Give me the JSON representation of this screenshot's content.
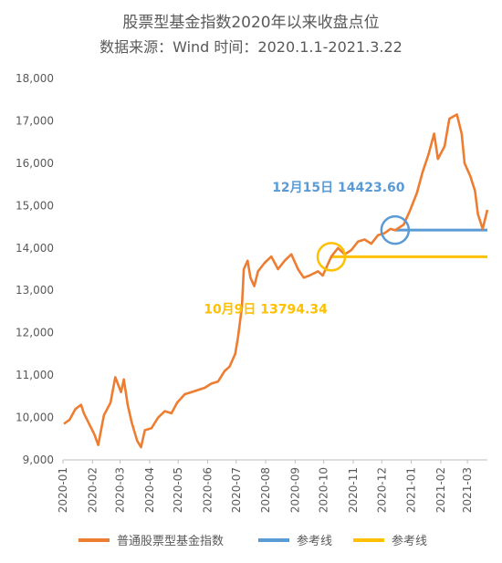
{
  "chart_data": {
    "type": "line",
    "title": "股票型基金指数2020年以来收盘点位",
    "subtitle": "数据来源：Wind 时间：2020.1.1-2021.3.22",
    "ylim": [
      9000,
      18000
    ],
    "yticks": [
      9000,
      10000,
      11000,
      12000,
      13000,
      14000,
      15000,
      16000,
      17000,
      18000
    ],
    "ytick_labels": [
      "9,000",
      "10,000",
      "11,000",
      "12,000",
      "13,000",
      "14,000",
      "15,000",
      "16,000",
      "17,000",
      "18,000"
    ],
    "x_categories": [
      "2020-01",
      "2020-02",
      "2020-03",
      "2020-04",
      "2020-05",
      "2020-06",
      "2020-07",
      "2020-08",
      "2020-09",
      "2020-10",
      "2020-11",
      "2020-12",
      "2021-01",
      "2021-02",
      "2021-03"
    ],
    "series": [
      {
        "name": "普通股票型基金指数",
        "color": "#ED7D31",
        "x": [
          "2020-01-02",
          "2020-01-08",
          "2020-01-14",
          "2020-01-20",
          "2020-01-23",
          "2020-02-03",
          "2020-02-07",
          "2020-02-13",
          "2020-02-20",
          "2020-02-25",
          "2020-03-02",
          "2020-03-05",
          "2020-03-09",
          "2020-03-13",
          "2020-03-19",
          "2020-03-23",
          "2020-03-27",
          "2020-04-03",
          "2020-04-10",
          "2020-04-17",
          "2020-04-24",
          "2020-04-30",
          "2020-05-08",
          "2020-05-15",
          "2020-05-22",
          "2020-05-29",
          "2020-06-05",
          "2020-06-12",
          "2020-06-19",
          "2020-06-24",
          "2020-06-30",
          "2020-07-03",
          "2020-07-07",
          "2020-07-09",
          "2020-07-13",
          "2020-07-16",
          "2020-07-20",
          "2020-07-24",
          "2020-07-31",
          "2020-08-07",
          "2020-08-14",
          "2020-08-21",
          "2020-08-28",
          "2020-09-04",
          "2020-09-10",
          "2020-09-16",
          "2020-09-25",
          "2020-09-30",
          "2020-10-09",
          "2020-10-16",
          "2020-10-23",
          "2020-10-30",
          "2020-11-06",
          "2020-11-13",
          "2020-11-20",
          "2020-11-27",
          "2020-12-04",
          "2020-12-10",
          "2020-12-15",
          "2020-12-24",
          "2020-12-31",
          "2021-01-07",
          "2021-01-13",
          "2021-01-19",
          "2021-01-25",
          "2021-01-29",
          "2021-02-05",
          "2021-02-10",
          "2021-02-18",
          "2021-02-23",
          "2021-02-26",
          "2021-03-04",
          "2021-03-09",
          "2021-03-12",
          "2021-03-17",
          "2021-03-22"
        ],
        "values": [
          9850,
          9950,
          10200,
          10300,
          10100,
          9600,
          9350,
          10050,
          10350,
          10950,
          10600,
          10900,
          10300,
          9900,
          9450,
          9300,
          9700,
          9750,
          10000,
          10150,
          10100,
          10350,
          10550,
          10600,
          10650,
          10700,
          10800,
          10850,
          11100,
          11200,
          11500,
          11900,
          12600,
          13500,
          13700,
          13300,
          13100,
          13450,
          13650,
          13800,
          13500,
          13700,
          13850,
          13500,
          13300,
          13350,
          13450,
          13350,
          13800,
          14000,
          13850,
          13950,
          14150,
          14200,
          14100,
          14300,
          14350,
          14450,
          14420,
          14550,
          14900,
          15300,
          15800,
          16200,
          16700,
          16100,
          16400,
          17050,
          17150,
          16700,
          16000,
          15700,
          15350,
          14800,
          14450,
          14900
        ]
      },
      {
        "name": "参考线",
        "color": "#5B9BD5",
        "x_start": "2020-12-15",
        "x_end": "2021-03-22",
        "value": 14423.6
      },
      {
        "name": "参考线",
        "color": "#FFC000",
        "x_start": "2020-10-09",
        "x_end": "2021-03-22",
        "value": 13794.34
      }
    ],
    "annotations": [
      {
        "text": "12月15日 14423.60",
        "color": "#5B9BD5",
        "x": "2020-12-15",
        "value": 14423.6
      },
      {
        "text": "10月9日 13794.34",
        "color": "#FFC000",
        "x": "2020-10-09",
        "value": 13794.34
      }
    ],
    "legend": "bottom",
    "grid": false
  }
}
